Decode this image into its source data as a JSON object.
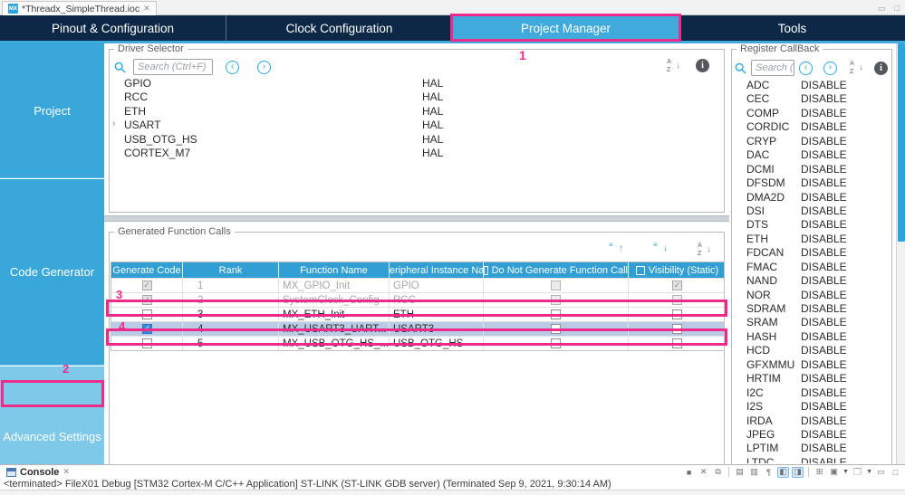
{
  "window": {
    "file_tab_title": "*Threadx_SimpleThread.ioc",
    "file_tab_close": "✕",
    "minimize_glyph": "▭",
    "maximize_glyph": "□"
  },
  "main_tabs": [
    {
      "label": "Pinout & Configuration",
      "active": false
    },
    {
      "label": "Clock Configuration",
      "active": false
    },
    {
      "label": "Project Manager",
      "active": true
    },
    {
      "label": "Tools",
      "active": false
    }
  ],
  "sidebar": {
    "items": [
      {
        "label": "Project",
        "selected": false
      },
      {
        "label": "Code Generator",
        "selected": false
      },
      {
        "label": "Advanced Settings",
        "selected": true
      }
    ]
  },
  "driver_selector": {
    "title": "Driver Selector",
    "search_placeholder": "Search (Ctrl+F)",
    "rows": [
      {
        "name": "GPIO",
        "driver": "HAL",
        "expandable": false
      },
      {
        "name": "RCC",
        "driver": "HAL",
        "expandable": false
      },
      {
        "name": "ETH",
        "driver": "HAL",
        "expandable": false
      },
      {
        "name": "USART",
        "driver": "HAL",
        "expandable": true
      },
      {
        "name": "USB_OTG_HS",
        "driver": "HAL",
        "expandable": false
      },
      {
        "name": "CORTEX_M7",
        "driver": "HAL",
        "expandable": false
      }
    ]
  },
  "generated_function_calls": {
    "title": "Generated Function Calls",
    "columns": [
      {
        "label": "Generate Code",
        "checkbox": false
      },
      {
        "label": "Rank",
        "checkbox": false
      },
      {
        "label": "Function Name",
        "checkbox": false
      },
      {
        "label": "Peripheral Instance Na..",
        "checkbox": false
      },
      {
        "label": "Do Not Generate Function Call",
        "checkbox": true
      },
      {
        "label": "Visibility (Static)",
        "checkbox": true
      }
    ],
    "rows": [
      {
        "generate_code": "checked-gray",
        "rank": "1",
        "function_name": "MX_GPIO_Init",
        "peripheral": "GPIO",
        "do_not_generate": "unchecked-gray",
        "visibility": "checked-gray",
        "disabled": true,
        "selected": false
      },
      {
        "generate_code": "checked-gray",
        "rank": "2",
        "function_name": "SystemClock_Config",
        "peripheral": "RCC",
        "do_not_generate": "unchecked-gray",
        "visibility": "unchecked-gray",
        "disabled": true,
        "selected": false
      },
      {
        "generate_code": "unchecked",
        "rank": "3",
        "function_name": "MX_ETH_Init",
        "peripheral": "ETH",
        "do_not_generate": "unchecked",
        "visibility": "unchecked",
        "disabled": false,
        "selected": false
      },
      {
        "generate_code": "checked-blue",
        "rank": "4",
        "function_name": "MX_USART3_UART...",
        "peripheral": "USART3",
        "do_not_generate": "unchecked",
        "visibility": "unchecked",
        "disabled": false,
        "selected": true
      },
      {
        "generate_code": "unchecked",
        "rank": "5",
        "function_name": "MX_USB_OTG_HS_...",
        "peripheral": "USB_OTG_HS",
        "do_not_generate": "unchecked",
        "visibility": "unchecked",
        "disabled": false,
        "selected": false
      }
    ]
  },
  "register_callback": {
    "title": "Register CallBack",
    "search_placeholder": "Search (...",
    "rows": [
      {
        "name": "ADC",
        "value": "DISABLE"
      },
      {
        "name": "CEC",
        "value": "DISABLE"
      },
      {
        "name": "COMP",
        "value": "DISABLE"
      },
      {
        "name": "CORDIC",
        "value": "DISABLE"
      },
      {
        "name": "CRYP",
        "value": "DISABLE"
      },
      {
        "name": "DAC",
        "value": "DISABLE"
      },
      {
        "name": "DCMI",
        "value": "DISABLE"
      },
      {
        "name": "DFSDM",
        "value": "DISABLE"
      },
      {
        "name": "DMA2D",
        "value": "DISABLE"
      },
      {
        "name": "DSI",
        "value": "DISABLE"
      },
      {
        "name": "DTS",
        "value": "DISABLE"
      },
      {
        "name": "ETH",
        "value": "DISABLE"
      },
      {
        "name": "FDCAN",
        "value": "DISABLE"
      },
      {
        "name": "FMAC",
        "value": "DISABLE"
      },
      {
        "name": "NAND",
        "value": "DISABLE"
      },
      {
        "name": "NOR",
        "value": "DISABLE"
      },
      {
        "name": "SDRAM",
        "value": "DISABLE"
      },
      {
        "name": "SRAM",
        "value": "DISABLE"
      },
      {
        "name": "HASH",
        "value": "DISABLE"
      },
      {
        "name": "HCD",
        "value": "DISABLE"
      },
      {
        "name": "GFXMMU",
        "value": "DISABLE"
      },
      {
        "name": "HRTIM",
        "value": "DISABLE"
      },
      {
        "name": "I2C",
        "value": "DISABLE"
      },
      {
        "name": "I2S",
        "value": "DISABLE"
      },
      {
        "name": "IRDA",
        "value": "DISABLE"
      },
      {
        "name": "JPEG",
        "value": "DISABLE"
      },
      {
        "name": "LPTIM",
        "value": "DISABLE"
      },
      {
        "name": "LTDC",
        "value": "DISABLE"
      }
    ]
  },
  "console": {
    "tab_label": "Console",
    "tab_close": "✕",
    "status_text": "<terminated> FileX01 Debug [STM32 Cortex-M C/C++ Application] ST-LINK (ST-LINK GDB server) (Terminated Sep 9, 2021, 9:30:14 AM)",
    "toolbar_icons": [
      {
        "name": "terminate-icon",
        "glyph": "■",
        "highlighted": false
      },
      {
        "name": "remove-launch-icon",
        "glyph": "✕",
        "highlighted": false
      },
      {
        "name": "remove-all-terminated-icon",
        "glyph": "⧉",
        "highlighted": false
      },
      {
        "name": "separator",
        "glyph": "",
        "highlighted": false
      },
      {
        "name": "clear-console-icon",
        "glyph": "▤",
        "highlighted": false
      },
      {
        "name": "scroll-lock-icon",
        "glyph": "▥",
        "highlighted": false
      },
      {
        "name": "word-wrap-icon",
        "glyph": "¶",
        "highlighted": false
      },
      {
        "name": "show-stdout-console-icon",
        "glyph": "◧",
        "highlighted": true
      },
      {
        "name": "show-stderr-console-icon",
        "glyph": "◨",
        "highlighted": true
      },
      {
        "name": "separator",
        "glyph": "",
        "highlighted": false
      },
      {
        "name": "pin-console-icon",
        "glyph": "⊞",
        "highlighted": false
      },
      {
        "name": "display-console-dropdown",
        "glyph": "▣",
        "highlighted": false,
        "dropdown": true
      },
      {
        "name": "open-console-dropdown",
        "glyph": "🗔",
        "highlighted": false,
        "dropdown": true
      },
      {
        "name": "minimize-console-icon",
        "glyph": "▭",
        "highlighted": false
      },
      {
        "name": "maximize-console-icon",
        "glyph": "□",
        "highlighted": false
      }
    ]
  },
  "annotations": {
    "color": "#ee2a8b",
    "labels": [
      {
        "text": "1"
      },
      {
        "text": "2"
      },
      {
        "text": "3"
      },
      {
        "text": "4"
      }
    ]
  },
  "colors": {
    "navy": "#0d2747",
    "accent_blue": "#41aadc",
    "sidebar_light": "#7ec8ea",
    "table_header": "#319fd4",
    "annotation_pink": "#ee2a8b",
    "selected_row": "#b9cbe5"
  }
}
